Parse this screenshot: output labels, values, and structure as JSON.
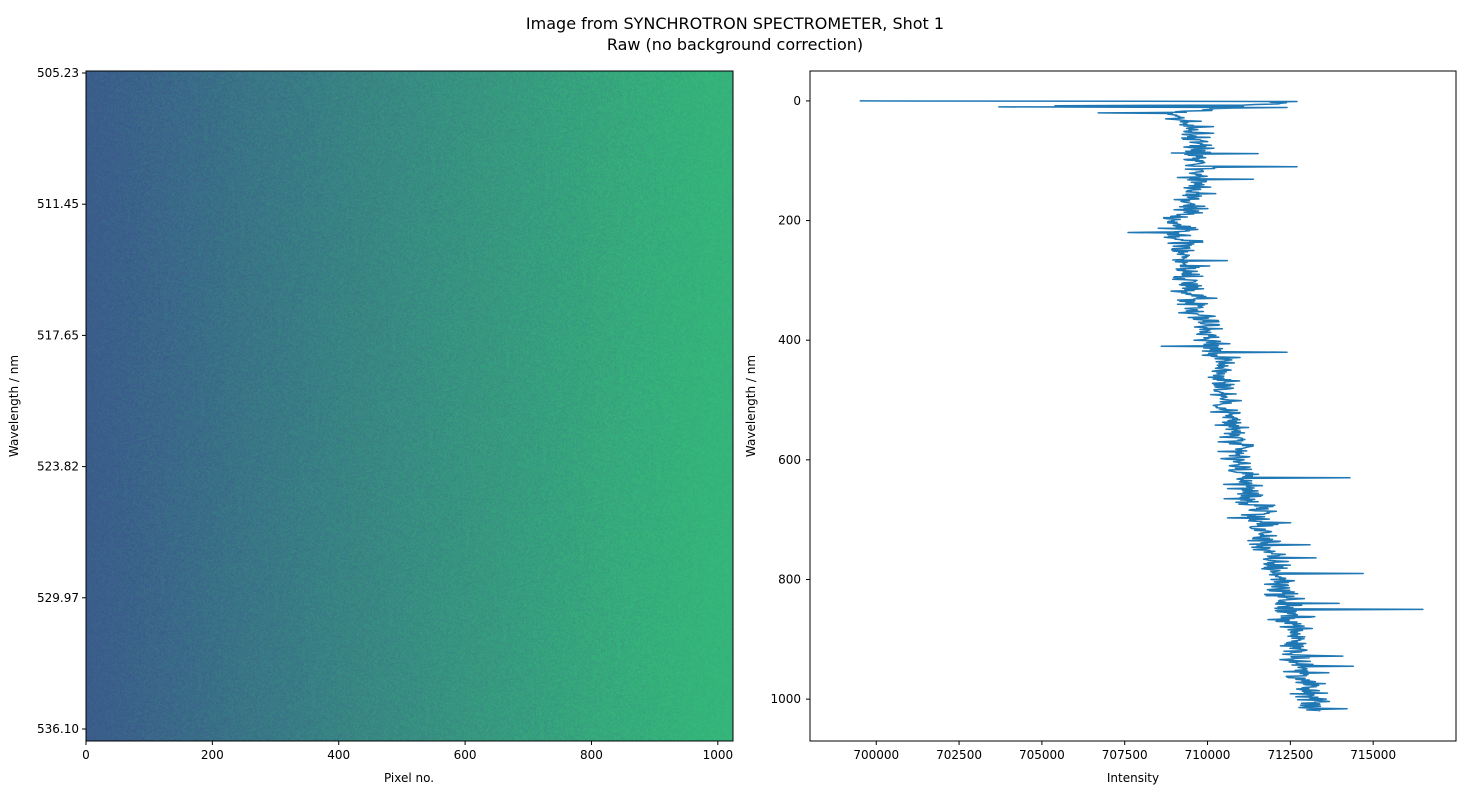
{
  "figure": {
    "title_line1": "Image from SYNCHROTRON SPECTROMETER, Shot 1",
    "title_line2": "Raw (no background correction)"
  },
  "chart_data": [
    {
      "type": "heatmap",
      "xlabel": "Pixel no.",
      "ylabel": "Wavelength / nm",
      "x_range": [
        0,
        1024
      ],
      "x_ticks": [
        0,
        200,
        400,
        600,
        800,
        1000
      ],
      "y_range_nm": [
        505.23,
        536.1
      ],
      "y_tick_labels": [
        "505.23",
        "511.45",
        "517.65",
        "523.82",
        "529.97",
        "536.10"
      ],
      "colormap": "viridis",
      "gradient": {
        "direction": "left-to-right",
        "left_color": "#3b5a8c",
        "right_color": "#35b77a",
        "note_noise": true
      },
      "grid": false
    },
    {
      "type": "line",
      "orientation": "horizontal-intensity-vs-row",
      "xlabel": "Intensity",
      "ylabel": "Wavelength / nm",
      "x_range": [
        698000,
        717500
      ],
      "x_ticks": [
        700000,
        702500,
        705000,
        707500,
        710000,
        712500,
        715000
      ],
      "y_range": [
        1070,
        -50
      ],
      "y_ticks": [
        0,
        200,
        400,
        600,
        800,
        1000
      ],
      "series": [
        {
          "color": "#1f77b4",
          "trend": {
            "rows": [
              0,
              10,
              20,
              50,
              100,
              150,
              200,
              250,
              300,
              350,
              400,
              450,
              500,
              550,
              600,
              650,
              700,
              750,
              800,
              850,
              900,
              950,
              1000,
              1020
            ],
            "intensity": [
              712700,
              711000,
              709000,
              709600,
              709800,
              709700,
              709100,
              709300,
              709400,
              709700,
              710200,
              710500,
              710500,
              710800,
              710900,
              711200,
              711500,
              711800,
              712200,
              712400,
              712700,
              712800,
              713100,
              713200
            ]
          },
          "spikes": [
            {
              "row": 0,
              "intensity": 699500
            },
            {
              "row": 1,
              "intensity": 712700
            },
            {
              "row": 8,
              "intensity": 705400
            },
            {
              "row": 10,
              "intensity": 703700
            },
            {
              "row": 11,
              "intensity": 712400
            },
            {
              "row": 20,
              "intensity": 706700
            },
            {
              "row": 110,
              "intensity": 712700
            },
            {
              "row": 220,
              "intensity": 707600
            },
            {
              "row": 410,
              "intensity": 708600
            },
            {
              "row": 420,
              "intensity": 712400
            },
            {
              "row": 630,
              "intensity": 714300
            },
            {
              "row": 790,
              "intensity": 714700
            },
            {
              "row": 850,
              "intensity": 716500
            },
            {
              "row": 945,
              "intensity": 714400
            }
          ]
        }
      ],
      "grid": false
    }
  ]
}
